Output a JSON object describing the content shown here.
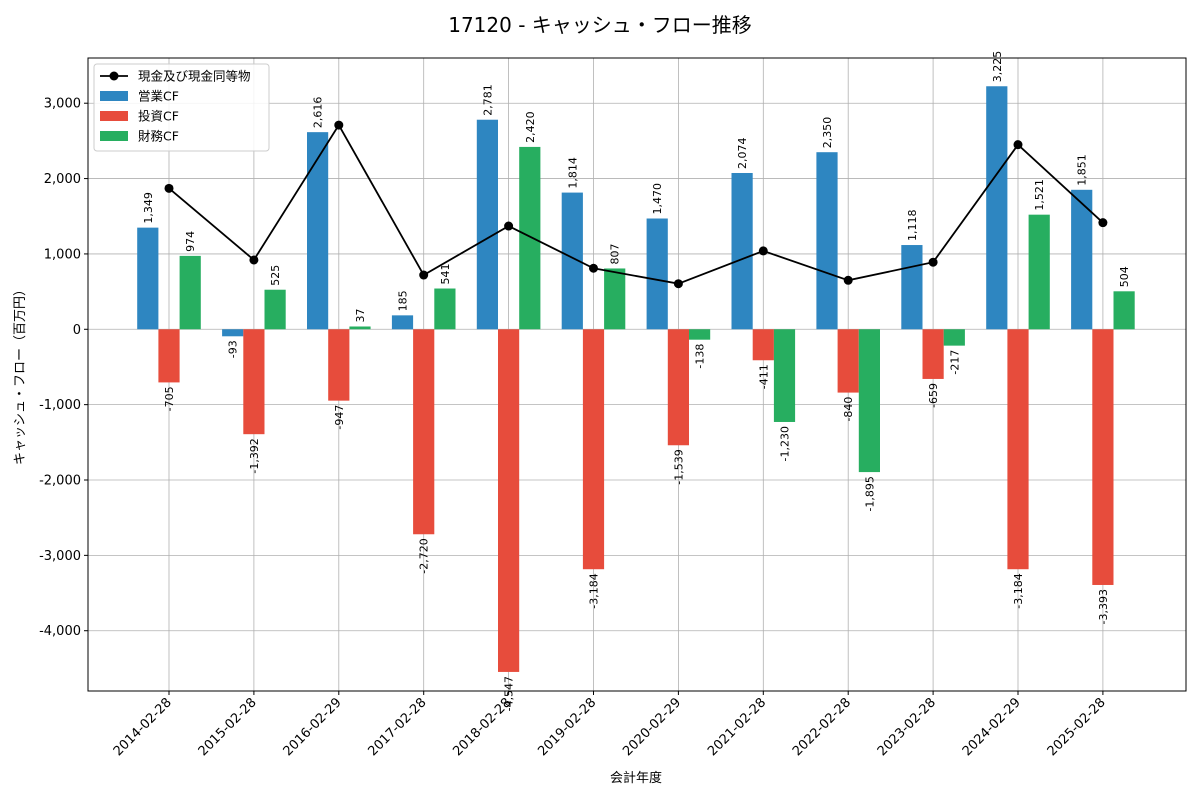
{
  "chart_data": {
    "type": "bar",
    "title": "17120 - キャッシュ・フロー推移",
    "xlabel": "会計年度",
    "ylabel": "キャッシュ・フロー（百万円）",
    "ylim": [
      -4800,
      3600
    ],
    "yticks": [
      -4000,
      -3000,
      -2000,
      -1000,
      0,
      1000,
      2000,
      3000
    ],
    "ytick_labels": [
      "-4,000",
      "-3,000",
      "-2,000",
      "-1,000",
      "0",
      "1,000",
      "2,000",
      "3,000"
    ],
    "grid": true,
    "legend_position": "top-left",
    "categories": [
      "2014-02-28",
      "2015-02-28",
      "2016-02-29",
      "2017-02-28",
      "2018-02-28",
      "2019-02-28",
      "2020-02-29",
      "2021-02-28",
      "2022-02-28",
      "2023-02-28",
      "2024-02-29",
      "2025-02-28"
    ],
    "series": [
      {
        "name": "営業CF",
        "kind": "bar",
        "color": "#2e86c1",
        "values": [
          1349,
          -93,
          2616,
          185,
          2781,
          1814,
          1470,
          2074,
          2350,
          1118,
          3225,
          1851
        ],
        "labels": [
          "1,349",
          "-93",
          "2,616",
          "185",
          "2,781",
          "1,814",
          "1,470",
          "2,074",
          "2,350",
          "1,118",
          "3,225",
          "1,851"
        ]
      },
      {
        "name": "投資CF",
        "kind": "bar",
        "color": "#e74c3c",
        "values": [
          -705,
          -1392,
          -947,
          -2720,
          -4547,
          -3184,
          -1539,
          -411,
          -840,
          -659,
          -3184,
          -3393
        ],
        "labels": [
          "-705",
          "-1,392",
          "-947",
          "-2,720",
          "-4,547",
          "-3,184",
          "-1,539",
          "-411",
          "-840",
          "-659",
          "-3,184",
          "-3,393"
        ]
      },
      {
        "name": "財務CF",
        "kind": "bar",
        "color": "#27ae60",
        "values": [
          974,
          525,
          37,
          541,
          2420,
          807,
          -138,
          -1230,
          -1895,
          -217,
          1521,
          504
        ],
        "labels": [
          "974",
          "525",
          "37",
          "541",
          "2,420",
          "807",
          "-138",
          "-1,230",
          "-1,895",
          "-217",
          "1,521",
          "504"
        ]
      },
      {
        "name": "現金及び現金同等物",
        "kind": "line",
        "color": "#000000",
        "values": [
          1870,
          920,
          2710,
          720,
          1370,
          810,
          605,
          1040,
          650,
          890,
          2450,
          1415
        ]
      }
    ]
  }
}
